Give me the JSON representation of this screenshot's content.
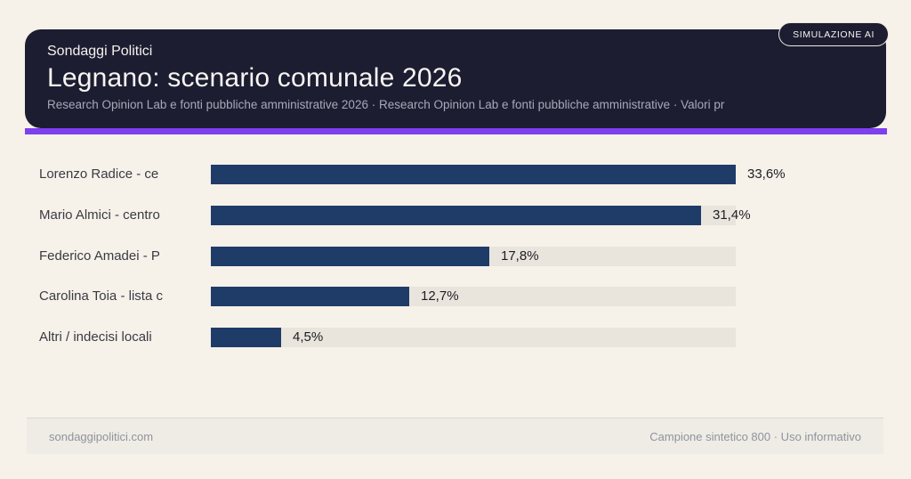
{
  "badge": {
    "label": "SIMULAZIONE AI"
  },
  "header": {
    "kicker": "Sondaggi Politici",
    "title": "Legnano: scenario comunale 2026",
    "subtitle": "Research Opinion Lab e fonti pubbliche amministrative 2026 · Research Opinion Lab e fonti pubbliche amministrative · Valori pr"
  },
  "chart_data": {
    "type": "bar",
    "orientation": "horizontal",
    "title": "Legnano: scenario comunale 2026",
    "categories": [
      "Lorenzo Radice - ce",
      "Mario Almici - centro",
      "Federico Amadei - P",
      "Carolina Toia - lista c",
      "Altri / indecisi locali"
    ],
    "values": [
      33.6,
      31.4,
      17.8,
      12.7,
      4.5
    ],
    "value_labels": [
      "33,6%",
      "31,4%",
      "17,8%",
      "12,7%",
      "4,5%"
    ],
    "xlim": [
      0,
      33.6
    ],
    "grid": false,
    "legend": false,
    "bar_color": "#1f3c68",
    "track_color": "#e9e5dd"
  },
  "footer": {
    "left": "sondaggipolitici.com",
    "right": "Campione sintetico 800 · Uso informativo"
  },
  "colors": {
    "page_background": "#f6f1e9",
    "card_background": "#1c1d31",
    "accent_purple": "#7d3ff0",
    "bar_navy": "#1f3c68"
  }
}
